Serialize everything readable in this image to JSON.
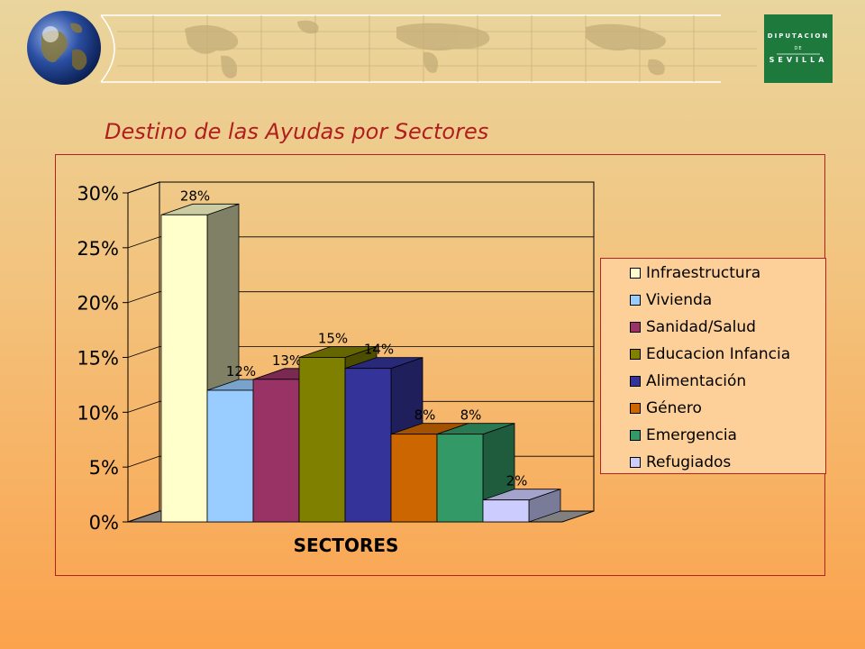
{
  "slide_title": "Destino de las Ayudas por Sectores",
  "logo": {
    "top": "DIPUTACION",
    "middle": "DE",
    "bottom": "SEVILLA"
  },
  "colors": {
    "title": "#b01e1e",
    "frame": "#b22222",
    "legend_bg": "#fdd099",
    "logo_bg": "#1e7a3c"
  },
  "chart_data": {
    "type": "bar",
    "title": "",
    "xlabel": "SECTORES",
    "ylabel": "",
    "ylim": [
      0,
      30
    ],
    "y_ticks": [
      "0%",
      "5%",
      "10%",
      "15%",
      "20%",
      "25%",
      "30%"
    ],
    "y_tick_values": [
      0,
      5,
      10,
      15,
      20,
      25,
      30
    ],
    "grid": true,
    "three_d": true,
    "legend_placement": "right",
    "categories": [
      "Infraestructura",
      "Vivienda",
      "Sanidad/Salud",
      "Educacion Infancia",
      "Alimentación",
      "Género",
      "Emergencia",
      "Refugiados"
    ],
    "values": [
      28,
      12,
      13,
      15,
      14,
      8,
      8,
      2
    ],
    "data_labels": [
      "28%",
      "12%",
      "13%",
      "15%",
      "14%",
      "8%",
      "8%",
      "2%"
    ],
    "bar_colors": [
      "#ffffcc",
      "#99ccff",
      "#993366",
      "#808000",
      "#333399",
      "#cc6600",
      "#339966",
      "#ccccff"
    ],
    "side_colors": [
      "#808066",
      "#5a7a99",
      "#5c1f3d",
      "#4d4d00",
      "#1f1f5c",
      "#7a3d00",
      "#1f5c3d",
      "#7a7a99"
    ],
    "top_colors": [
      "#cccca3",
      "#7aa3cc",
      "#7a2952",
      "#666600",
      "#29297a",
      "#a35200",
      "#297a52",
      "#a3a3cc"
    ]
  }
}
